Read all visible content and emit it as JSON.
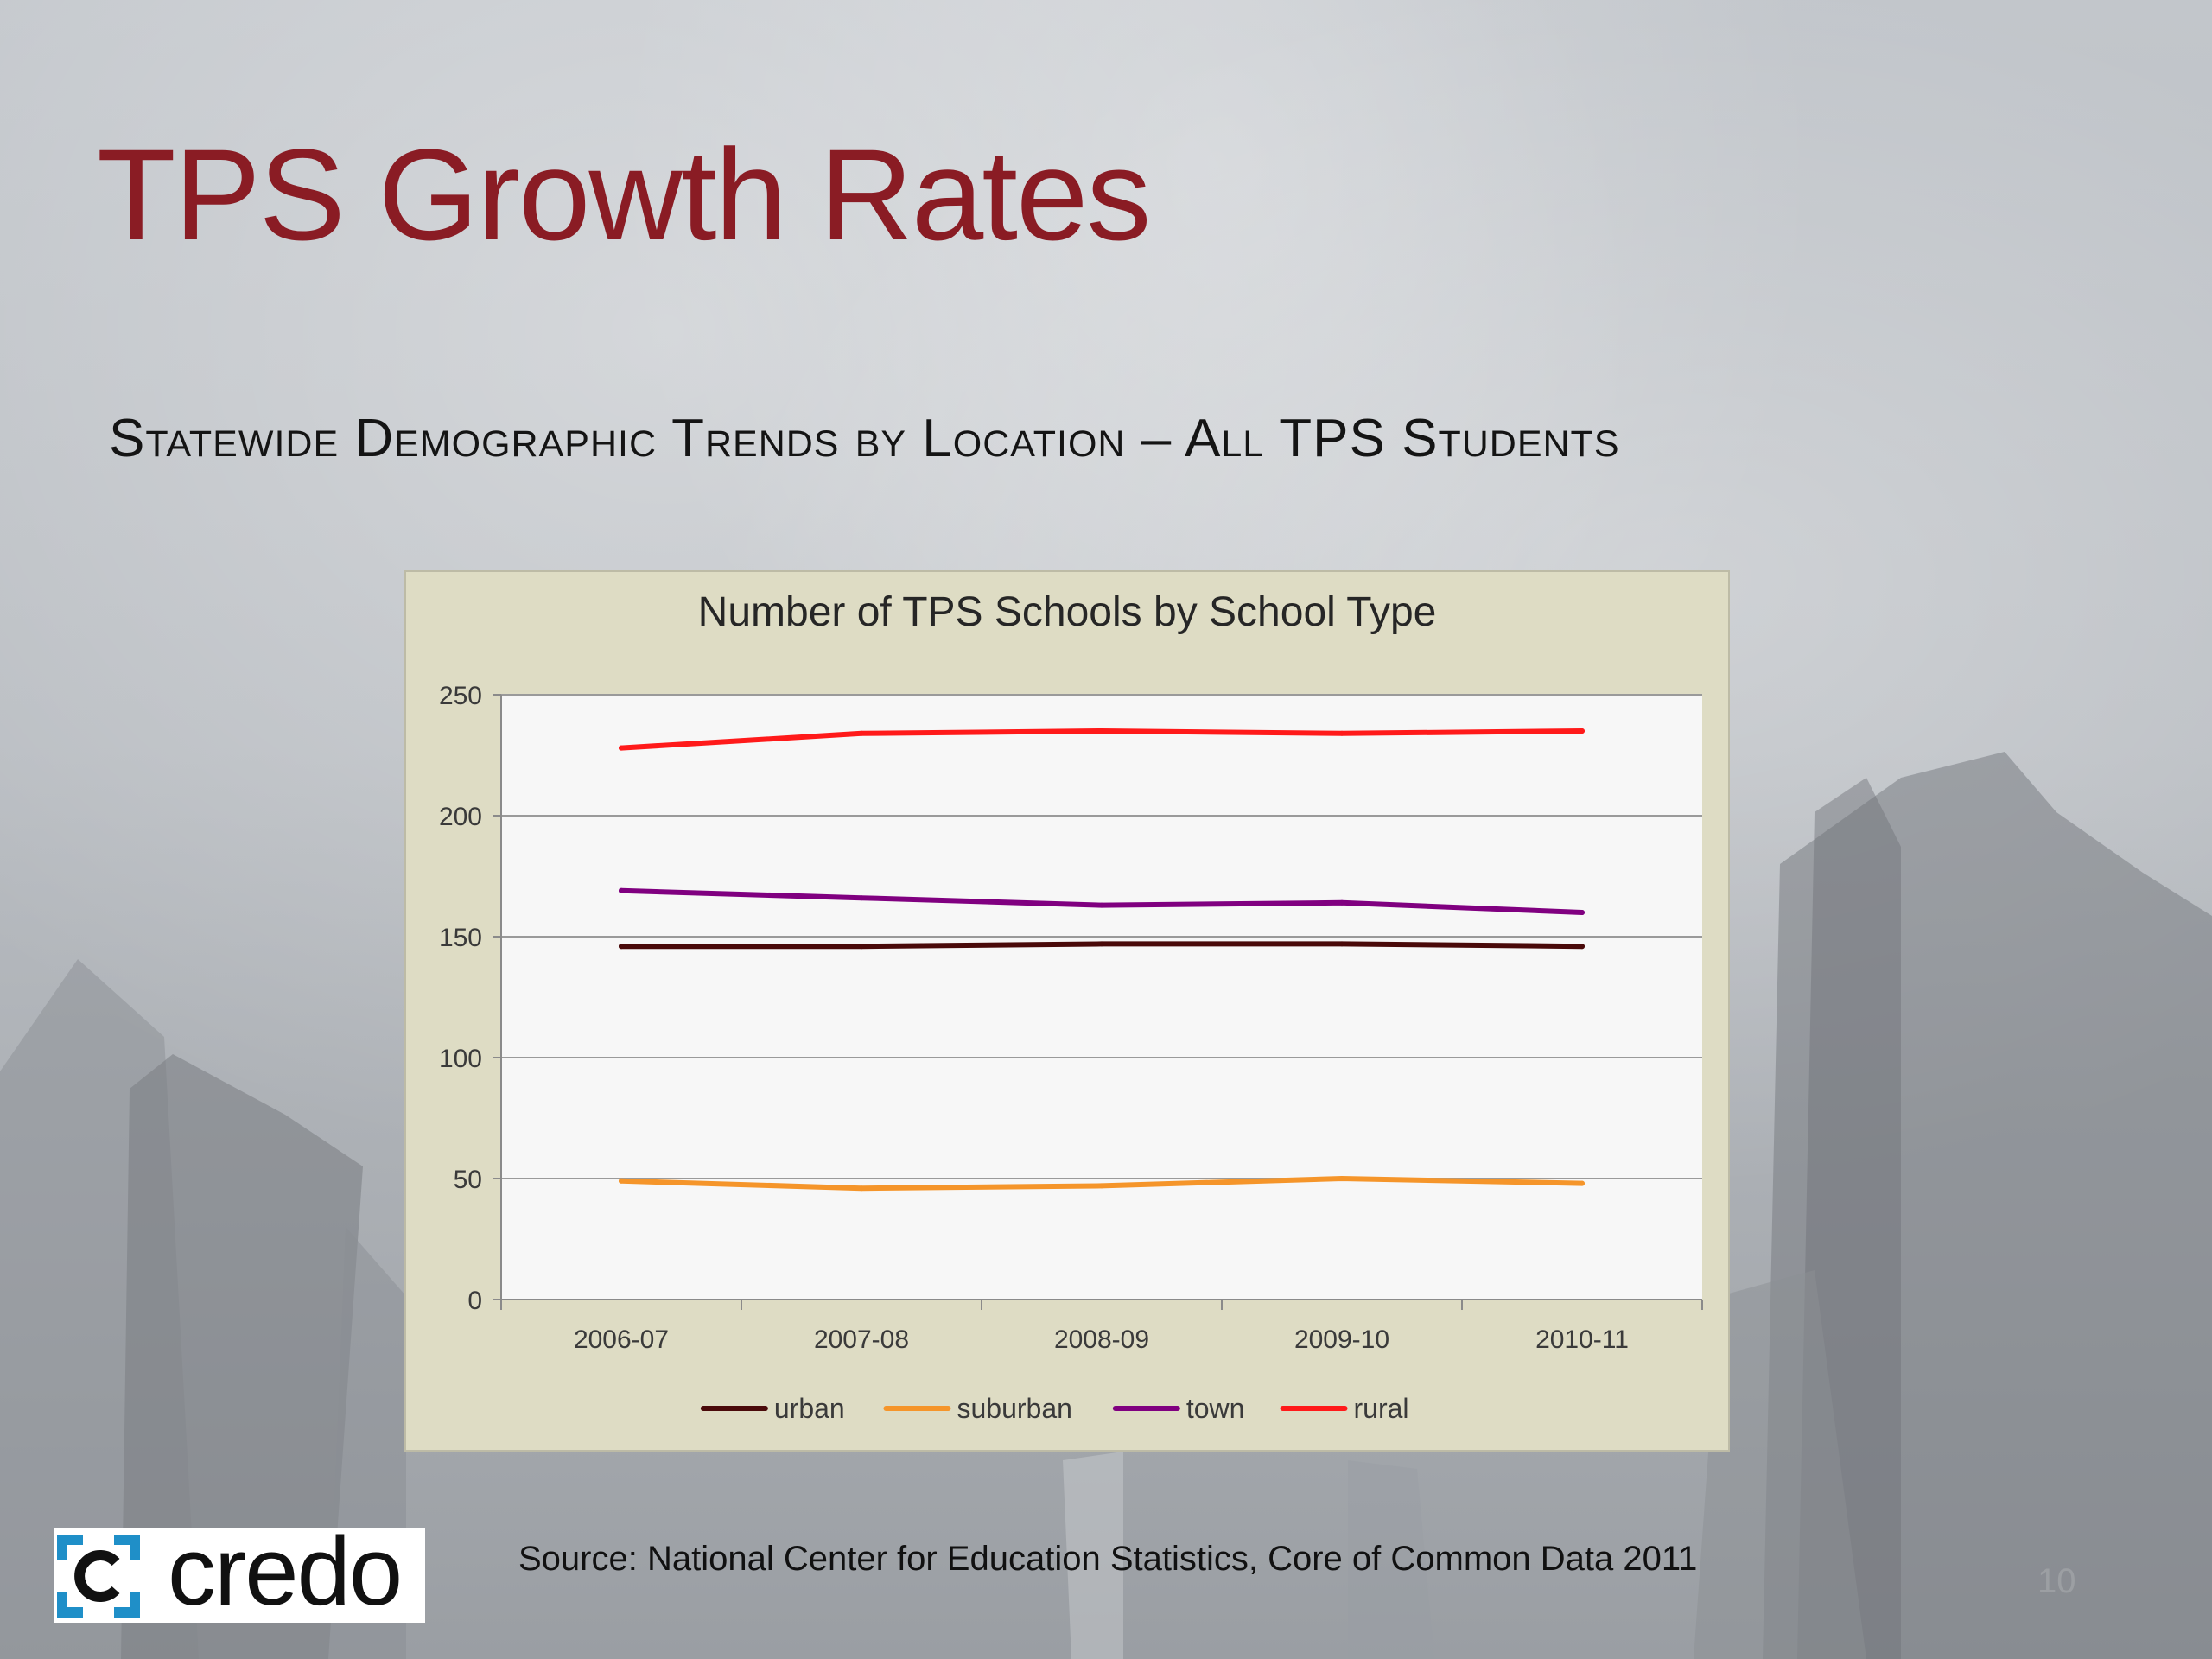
{
  "slide": {
    "title": "TPS Growth Rates",
    "subtitle": "Statewide Demographic Trends by Location – All TPS Students",
    "source": "Source:  National Center for Education Statistics, Core of Common Data 2011",
    "page_number": "10",
    "logo_text": "credo",
    "title_color": "#8a1c24"
  },
  "chart_data": {
    "type": "line",
    "title": "Number of TPS Schools by School Type",
    "xlabel": "",
    "ylabel": "",
    "categories": [
      "2006-07",
      "2007-08",
      "2008-09",
      "2009-10",
      "2010-11"
    ],
    "ylim": [
      0,
      250
    ],
    "yticks": [
      0,
      50,
      100,
      150,
      200,
      250
    ],
    "grid": true,
    "legend_position": "bottom",
    "series": [
      {
        "name": "urban",
        "color": "#4a0a0a",
        "values": [
          146,
          146,
          147,
          147,
          146
        ]
      },
      {
        "name": "suburban",
        "color": "#f5952a",
        "values": [
          49,
          46,
          47,
          50,
          48
        ]
      },
      {
        "name": "town",
        "color": "#800080",
        "values": [
          169,
          166,
          163,
          164,
          160
        ]
      },
      {
        "name": "rural",
        "color": "#ff1a1a",
        "values": [
          228,
          234,
          235,
          234,
          235
        ]
      }
    ]
  }
}
